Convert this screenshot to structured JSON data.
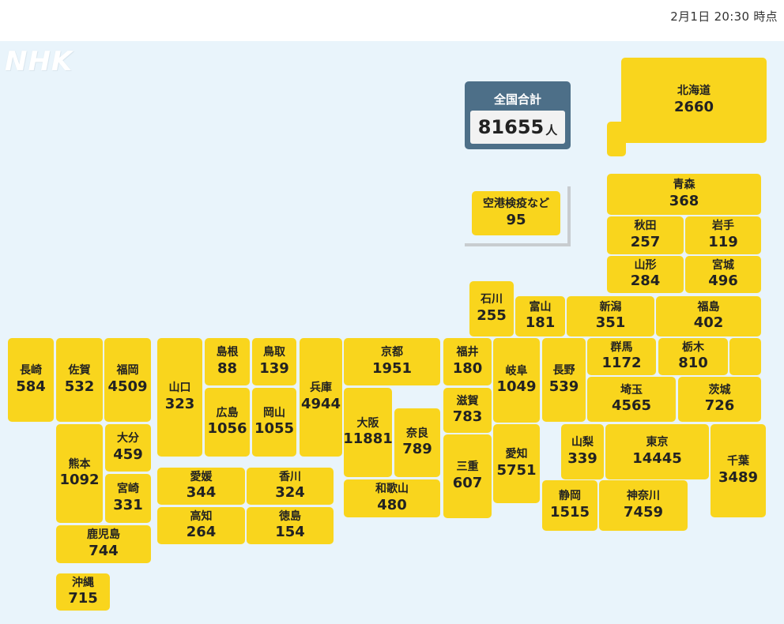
{
  "timestamp": "2月1日 20:30 時点",
  "logo": "NHK",
  "total": {
    "label": "全国合計",
    "value": "81655",
    "unit": "人"
  },
  "airport": {
    "name": "空港検疫など",
    "count": "95"
  },
  "colors": {
    "cell": "#f9d51d",
    "background": "#e9f4fb",
    "total_header": "#4d6f88"
  },
  "prefectures": [
    {
      "name": "北海道",
      "count": "2660"
    },
    {
      "name": "青森",
      "count": "368"
    },
    {
      "name": "秋田",
      "count": "257"
    },
    {
      "name": "岩手",
      "count": "119"
    },
    {
      "name": "山形",
      "count": "284"
    },
    {
      "name": "宮城",
      "count": "496"
    },
    {
      "name": "石川",
      "count": "255"
    },
    {
      "name": "富山",
      "count": "181"
    },
    {
      "name": "新潟",
      "count": "351"
    },
    {
      "name": "福島",
      "count": "402"
    },
    {
      "name": "長崎",
      "count": "584"
    },
    {
      "name": "佐賀",
      "count": "532"
    },
    {
      "name": "福岡",
      "count": "4509"
    },
    {
      "name": "山口",
      "count": "323"
    },
    {
      "name": "島根",
      "count": "88"
    },
    {
      "name": "鳥取",
      "count": "139"
    },
    {
      "name": "兵庫",
      "count": "4944"
    },
    {
      "name": "京都",
      "count": "1951"
    },
    {
      "name": "福井",
      "count": "180"
    },
    {
      "name": "岐阜",
      "count": "1049"
    },
    {
      "name": "長野",
      "count": "539"
    },
    {
      "name": "群馬",
      "count": "1172"
    },
    {
      "name": "栃木",
      "count": "810"
    },
    {
      "name": "広島",
      "count": "1056"
    },
    {
      "name": "岡山",
      "count": "1055"
    },
    {
      "name": "大阪",
      "count": "11881"
    },
    {
      "name": "滋賀",
      "count": "783"
    },
    {
      "name": "埼玉",
      "count": "4565"
    },
    {
      "name": "茨城",
      "count": "726"
    },
    {
      "name": "熊本",
      "count": "1092"
    },
    {
      "name": "大分",
      "count": "459"
    },
    {
      "name": "宮崎",
      "count": "331"
    },
    {
      "name": "奈良",
      "count": "789"
    },
    {
      "name": "三重",
      "count": "607"
    },
    {
      "name": "愛知",
      "count": "5751"
    },
    {
      "name": "山梨",
      "count": "339"
    },
    {
      "name": "東京",
      "count": "14445"
    },
    {
      "name": "千葉",
      "count": "3489"
    },
    {
      "name": "愛媛",
      "count": "344"
    },
    {
      "name": "香川",
      "count": "324"
    },
    {
      "name": "和歌山",
      "count": "480"
    },
    {
      "name": "静岡",
      "count": "1515"
    },
    {
      "name": "神奈川",
      "count": "7459"
    },
    {
      "name": "高知",
      "count": "264"
    },
    {
      "name": "徳島",
      "count": "154"
    },
    {
      "name": "鹿児島",
      "count": "744"
    },
    {
      "name": "沖縄",
      "count": "715"
    }
  ]
}
